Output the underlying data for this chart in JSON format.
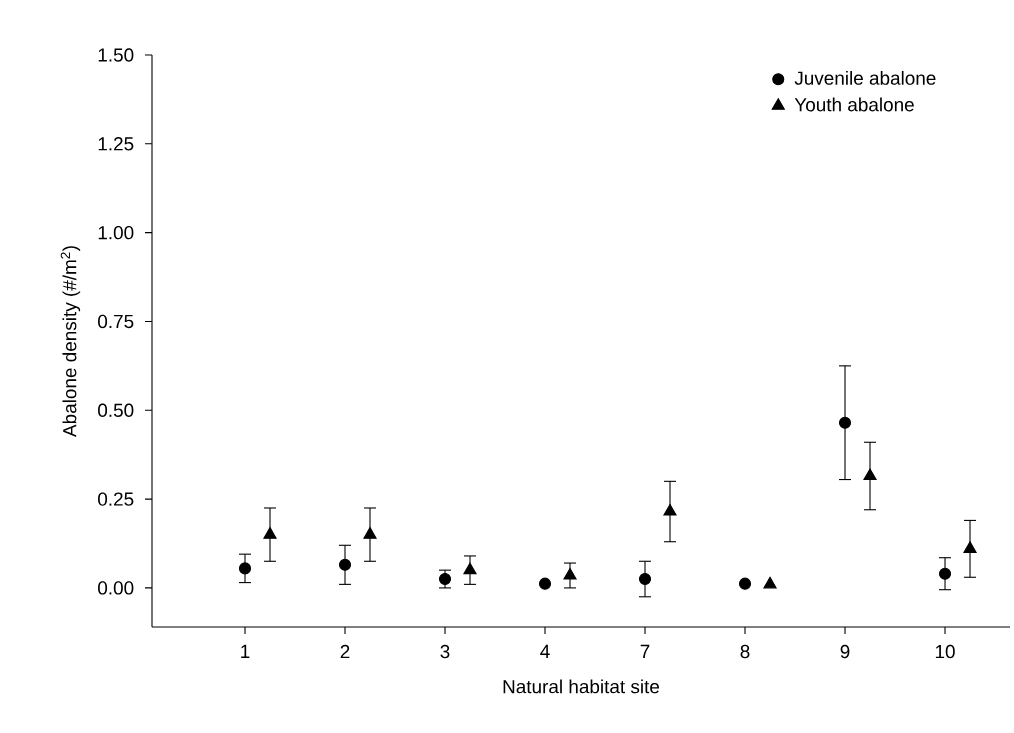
{
  "chart_data": {
    "type": "scatter",
    "xlabel": "Natural habitat site",
    "ylabel": "Abalone density (#/m$^{2}$)",
    "categories": [
      "1",
      "2",
      "3",
      "4",
      "7",
      "8",
      "9",
      "10"
    ],
    "ylim": [
      -0.11,
      1.5
    ],
    "yticks": [
      {
        "value": 0,
        "label": "0.00"
      },
      {
        "value": 0.25,
        "label": "0.25"
      },
      {
        "value": 0.5,
        "label": "0.50"
      },
      {
        "value": 0.75,
        "label": "0.75"
      },
      {
        "value": 1,
        "label": "1.00"
      },
      {
        "value": 1.25,
        "label": "1.25"
      },
      {
        "value": 1.5,
        "label": "1.50"
      }
    ],
    "grid": false,
    "legend": "top right",
    "series": [
      {
        "name": "Juvenile abalone",
        "color": "#000000",
        "marker": "circle",
        "values": [
          0.055,
          0.065,
          0.025,
          0.012,
          0.025,
          0.012,
          0.465,
          0.04
        ],
        "errors": [
          0.04,
          0.055,
          0.025,
          null,
          0.05,
          null,
          0.16,
          0.045
        ]
      },
      {
        "name": "Youth abalone",
        "color": "#000000",
        "marker": "triangle",
        "values": [
          0.15,
          0.15,
          0.05,
          0.035,
          0.215,
          0.01,
          0.315,
          0.11
        ],
        "errors": [
          0.075,
          0.075,
          0.04,
          0.035,
          0.085,
          null,
          0.095,
          0.08
        ]
      }
    ]
  }
}
